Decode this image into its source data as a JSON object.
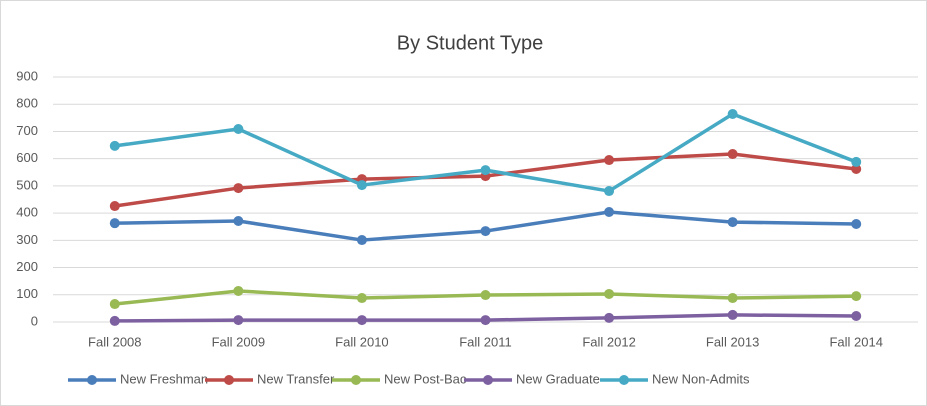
{
  "chart_data": {
    "type": "line",
    "title": "By Student Type",
    "categories": [
      "Fall 2008",
      "Fall 2009",
      "Fall 2010",
      "Fall 2011",
      "Fall 2012",
      "Fall 2013",
      "Fall 2014"
    ],
    "series": [
      {
        "name": "New Freshman",
        "color": "#4a7ebb",
        "values": [
          363,
          371,
          301,
          334,
          404,
          367,
          360
        ]
      },
      {
        "name": "New Transfer",
        "color": "#be4b48",
        "values": [
          426,
          492,
          525,
          536,
          595,
          617,
          562
        ]
      },
      {
        "name": "New Post-Bac",
        "color": "#98b954",
        "values": [
          66,
          114,
          88,
          99,
          103,
          88,
          95
        ]
      },
      {
        "name": "New Graduate",
        "color": "#7d60a0",
        "values": [
          4,
          7,
          7,
          7,
          15,
          26,
          22
        ]
      },
      {
        "name": "New Non-Admits",
        "color": "#46aac5",
        "values": [
          647,
          709,
          503,
          558,
          481,
          764,
          588
        ]
      }
    ],
    "ylim": [
      0,
      900
    ],
    "yticks": [
      0,
      100,
      200,
      300,
      400,
      500,
      600,
      700,
      800,
      900
    ],
    "grid": true,
    "legend": "bottom"
  }
}
